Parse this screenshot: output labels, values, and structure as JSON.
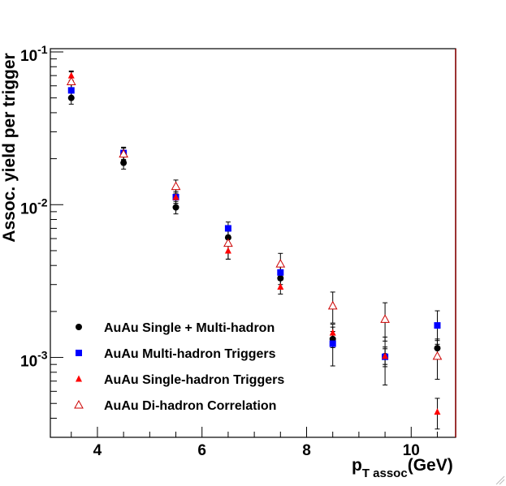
{
  "chart_data": {
    "type": "scatter",
    "title": "",
    "xlabel": {
      "main": "p",
      "sub": "T assoc",
      "tail": "(GeV)"
    },
    "ylabel": "Assoc. yield per trigger",
    "xlim": [
      3.1,
      10.85
    ],
    "ylim": [
      0.0003,
      0.105
    ],
    "yscale": "log",
    "xticks_major": [
      4,
      6,
      8,
      10
    ],
    "xtick_labels": [
      "4",
      "6",
      "8",
      "10"
    ],
    "ytick_labels": [
      {
        "value": 0.1,
        "base": "10",
        "exp": "-1"
      },
      {
        "value": 0.01,
        "base": "10",
        "exp": "-2"
      },
      {
        "value": 0.001,
        "base": "10",
        "exp": "-3"
      }
    ],
    "grid": false,
    "legend_position": "bottom-left",
    "series": [
      {
        "name": "AuAu Single + Multi-hadron",
        "marker": "circle",
        "color": "#000000",
        "x": [
          3.5,
          4.5,
          5.5,
          6.5,
          7.5,
          8.5,
          9.5,
          10.5
        ],
        "y": [
          0.05,
          0.0188,
          0.0096,
          0.0061,
          0.0033,
          0.00132,
          0.00102,
          0.00115
        ],
        "err": [
          0.0045,
          0.0017,
          0.0009,
          0.0006,
          0.0003,
          0.00016,
          0.00012,
          0.00014
        ]
      },
      {
        "name": "AuAu Multi-hadron Triggers",
        "marker": "square",
        "color": "#0000ff",
        "x": [
          3.5,
          4.5,
          5.5,
          6.5,
          7.5,
          8.5,
          9.5,
          10.5
        ],
        "y": [
          0.056,
          0.0218,
          0.0112,
          0.007,
          0.0036,
          0.00123,
          0.00101,
          0.00162
        ],
        "err": [
          0.005,
          0.002,
          0.001,
          0.0007,
          0.0004,
          0.00035,
          0.00035,
          0.0004
        ]
      },
      {
        "name": "AuAu Single-hadron Triggers",
        "marker": "triangle",
        "color": "#ff0000",
        "x": [
          3.5,
          4.5,
          5.5,
          6.5,
          7.5,
          8.5,
          9.5,
          10.5
        ],
        "y": [
          0.07,
          0.0215,
          0.0112,
          0.005,
          0.0029,
          0.00145,
          0.00102,
          0.00044
        ],
        "err": [
          0.005,
          0.002,
          0.001,
          0.0006,
          0.0003,
          0.0002,
          0.00015,
          0.0001
        ]
      },
      {
        "name": "AuAu Di-hadron Correlation",
        "marker": "triangle-open",
        "color": "#cc0000",
        "x": [
          3.5,
          4.5,
          5.5,
          6.5,
          7.5,
          8.5,
          9.5,
          10.5
        ],
        "y": [
          0.064,
          0.0215,
          0.0132,
          0.0056,
          0.0041,
          0.00218,
          0.00178,
          0.00102
        ],
        "err": [
          0.01,
          0.002,
          0.0013,
          0.0012,
          0.0007,
          0.0005,
          0.0005,
          0.0003
        ]
      }
    ]
  }
}
